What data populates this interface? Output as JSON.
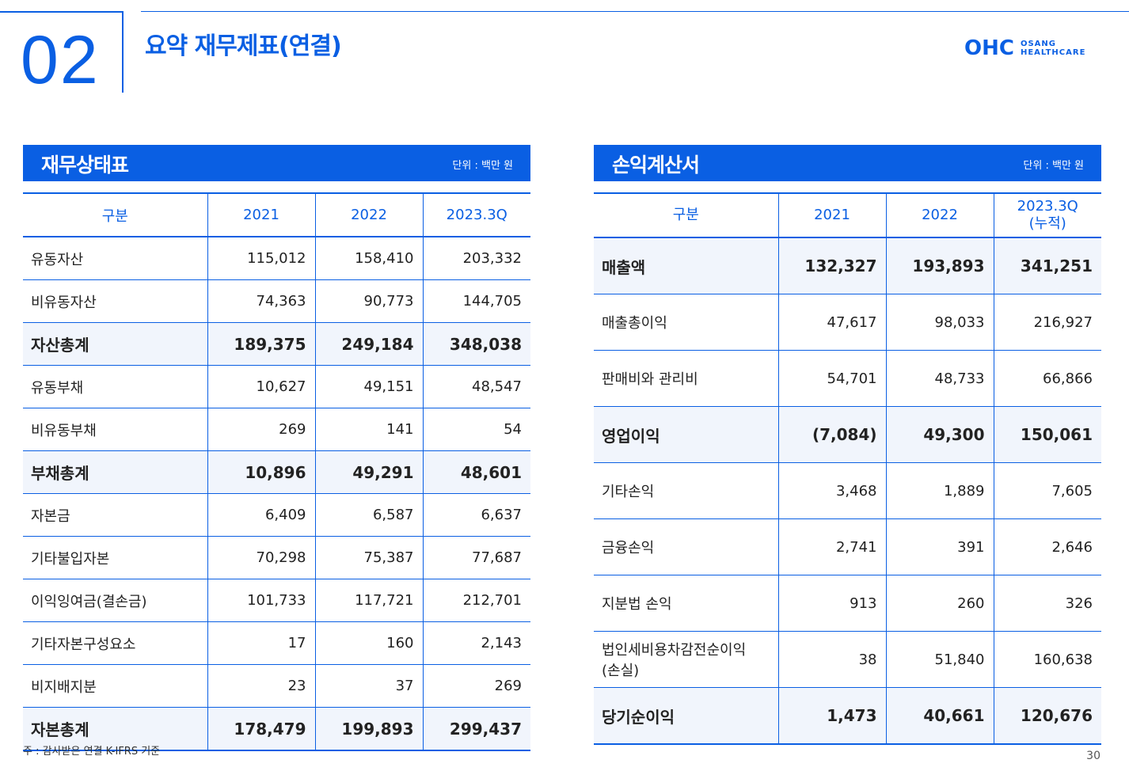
{
  "section_number": "02",
  "page_title": "요약 재무제표(연결)",
  "logo": {
    "mark": "OHC",
    "line1": "OSANG",
    "line2": "HEALTHCARE"
  },
  "balance_sheet": {
    "title": "재무상태표",
    "unit": "단위 : 백만 원",
    "headers": [
      "구분",
      "2021",
      "2022",
      "2023.3Q"
    ],
    "rows": [
      {
        "label": "유동자산",
        "values": [
          "115,012",
          "158,410",
          "203,332"
        ]
      },
      {
        "label": "비유동자산",
        "values": [
          "74,363",
          "90,773",
          "144,705"
        ]
      },
      {
        "label": "자산총계",
        "values": [
          "189,375",
          "249,184",
          "348,038"
        ]
      },
      {
        "label": "유동부채",
        "values": [
          "10,627",
          "49,151",
          "48,547"
        ]
      },
      {
        "label": "비유동부채",
        "values": [
          "269",
          "141",
          "54"
        ]
      },
      {
        "label": "부채총계",
        "values": [
          "10,896",
          "49,291",
          "48,601"
        ]
      },
      {
        "label": "자본금",
        "values": [
          "6,409",
          "6,587",
          "6,637"
        ]
      },
      {
        "label": "기타불입자본",
        "values": [
          "70,298",
          "75,387",
          "77,687"
        ]
      },
      {
        "label": "이익잉여금(결손금)",
        "values": [
          "101,733",
          "117,721",
          "212,701"
        ]
      },
      {
        "label": "기타자본구성요소",
        "values": [
          "17",
          "160",
          "2,143"
        ]
      },
      {
        "label": "비지배지분",
        "values": [
          "23",
          "37",
          "269"
        ]
      },
      {
        "label": "자본총계",
        "values": [
          "178,479",
          "199,893",
          "299,437"
        ]
      }
    ]
  },
  "income_statement": {
    "title": "손익계산서",
    "unit": "단위 : 백만 원",
    "headers": [
      "구분",
      "2021",
      "2022",
      "2023.3Q",
      "(누적)"
    ],
    "rows": [
      {
        "label": "매출액",
        "values": [
          "132,327",
          "193,893",
          "341,251"
        ]
      },
      {
        "label": "매출총이익",
        "values": [
          "47,617",
          "98,033",
          "216,927"
        ]
      },
      {
        "label": "판매비와 관리비",
        "values": [
          "54,701",
          "48,733",
          "66,866"
        ]
      },
      {
        "label": "영업이익",
        "values": [
          "(7,084)",
          "49,300",
          "150,061"
        ]
      },
      {
        "label": "기타손익",
        "values": [
          "3,468",
          "1,889",
          "7,605"
        ]
      },
      {
        "label": "금융손익",
        "values": [
          "2,741",
          "391",
          "2,646"
        ]
      },
      {
        "label": "지분법 손익",
        "values": [
          "913",
          "260",
          "326"
        ]
      },
      {
        "label": "법인세비용차감전순이익",
        "label2": "(손실)",
        "values": [
          "38",
          "51,840",
          "160,638"
        ]
      },
      {
        "label": "당기순이익",
        "values": [
          "1,473",
          "40,661",
          "120,676"
        ]
      }
    ]
  },
  "footnote": "주 : 감사받은 연결 K-IFRS 기준",
  "page_number": "30"
}
